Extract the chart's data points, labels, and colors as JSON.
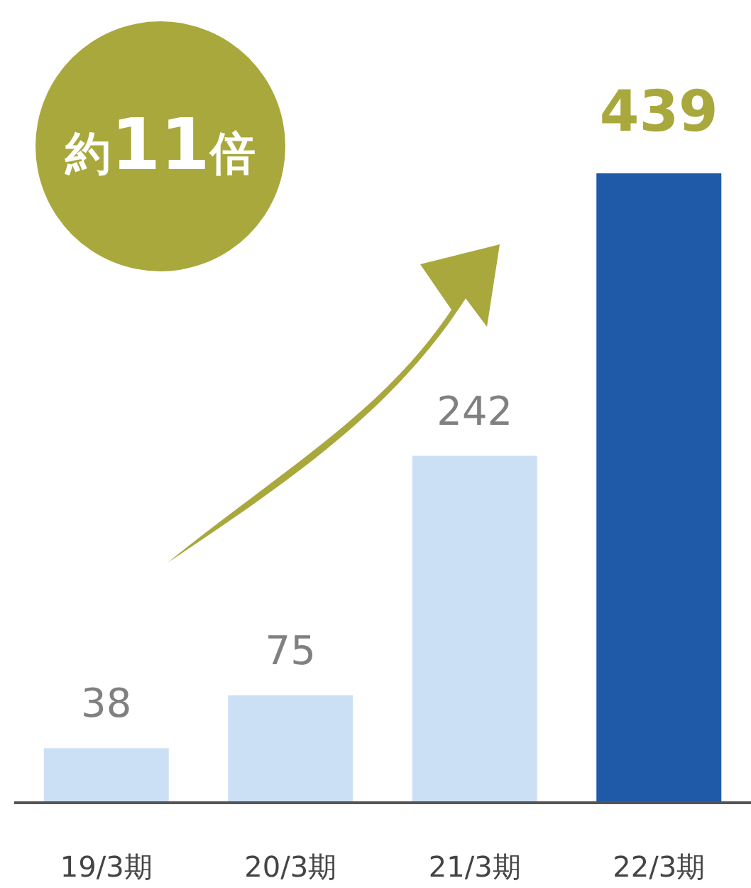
{
  "chart_data": {
    "type": "bar",
    "categories": [
      "19/3期",
      "20/3期",
      "21/3期",
      "22/3期"
    ],
    "values": [
      38,
      75,
      242,
      439
    ],
    "colors": [
      "#cce0f5",
      "#cce0f5",
      "#cce0f5",
      "#1f5aa8"
    ],
    "data_labels": true,
    "annotations": [
      "約11倍"
    ]
  }
}
